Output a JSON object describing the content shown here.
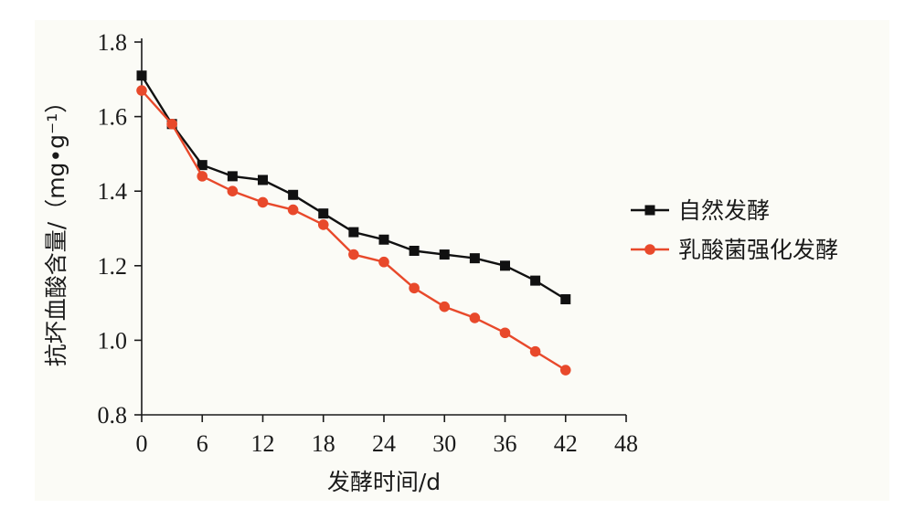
{
  "chart_data": {
    "type": "line",
    "xlabel": "发酵时间/d",
    "ylabel": "抗坏血酸含量/（mg•g⁻¹）",
    "xlim": [
      0,
      48
    ],
    "ylim": [
      0.8,
      1.8
    ],
    "xticks": [
      0,
      6,
      12,
      18,
      24,
      30,
      36,
      42,
      48
    ],
    "yticks": [
      0.8,
      1.0,
      1.2,
      1.4,
      1.6,
      1.8
    ],
    "ytick_labels": [
      "0.8",
      "1.0",
      "1.2",
      "1.4",
      "1.6",
      "1.8"
    ],
    "grid": false,
    "legend_position": "right",
    "x": [
      0,
      3,
      6,
      9,
      12,
      15,
      18,
      21,
      24,
      27,
      30,
      33,
      36,
      39,
      42
    ],
    "series": [
      {
        "name": "自然发酵",
        "marker": "square",
        "color": "#111111",
        "values": [
          1.71,
          1.58,
          1.47,
          1.44,
          1.43,
          1.39,
          1.34,
          1.29,
          1.27,
          1.24,
          1.23,
          1.22,
          1.2,
          1.16,
          1.11
        ]
      },
      {
        "name": "乳酸菌强化发酵",
        "marker": "circle",
        "color": "#e8492b",
        "values": [
          1.67,
          1.58,
          1.44,
          1.4,
          1.37,
          1.35,
          1.31,
          1.23,
          1.21,
          1.14,
          1.09,
          1.06,
          1.02,
          0.97,
          0.92
        ]
      }
    ]
  }
}
